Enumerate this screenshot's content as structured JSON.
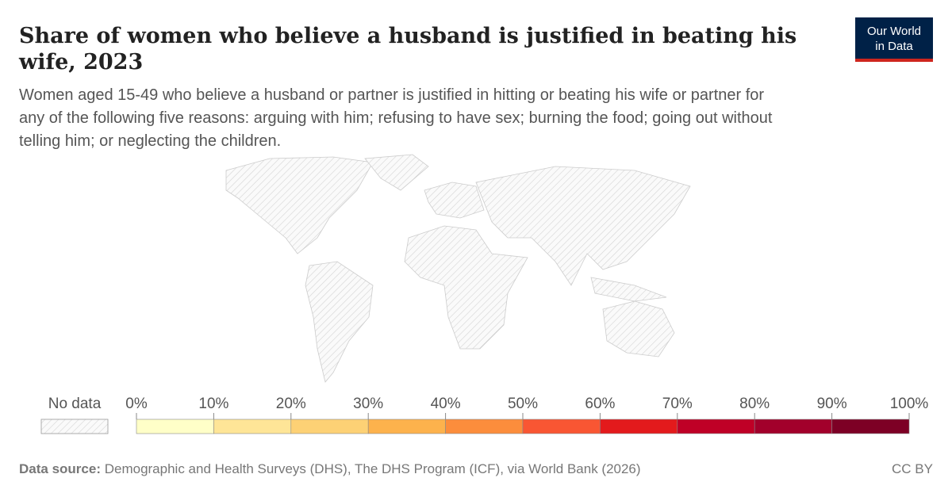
{
  "header": {
    "title_lines": [
      "Share of women who believe a husband is justified in beating his",
      "wife, 2023"
    ],
    "subtitle_lines": [
      "Women aged 15-49 who believe a husband or partner is justified in hitting or beating his wife or partner for",
      "any of the following five reasons: arguing with him; refusing to have sex; burning the food; going out without",
      "telling him; or neglecting the children."
    ]
  },
  "logo": [
    "Our World",
    "in Data"
  ],
  "legend": {
    "no_data": "No data",
    "ticks": [
      {
        "value": 0,
        "label": "0%"
      },
      {
        "value": 10,
        "label": "10%"
      },
      {
        "value": 20,
        "label": "20%"
      },
      {
        "value": 30,
        "label": "30%"
      },
      {
        "value": 40,
        "label": "40%"
      },
      {
        "value": 50,
        "label": "50%"
      },
      {
        "value": 60,
        "label": "60%"
      },
      {
        "value": 70,
        "label": "70%"
      },
      {
        "value": 80,
        "label": "80%"
      },
      {
        "value": 90,
        "label": "90%"
      },
      {
        "value": 100,
        "label": "100%"
      }
    ],
    "colors": [
      "#ffffc8",
      "#fee597",
      "#fdd175",
      "#fdb24c",
      "#fc8d3c",
      "#f95633",
      "#e31a1c",
      "#bf0026",
      "#a2002b",
      "#7d0025"
    ]
  },
  "footer": {
    "source_label": "Data source:",
    "source": "Demographic and Health Surveys (DHS), The DHS Program (ICF), via World Bank (2026)",
    "license": "CC BY"
  }
}
